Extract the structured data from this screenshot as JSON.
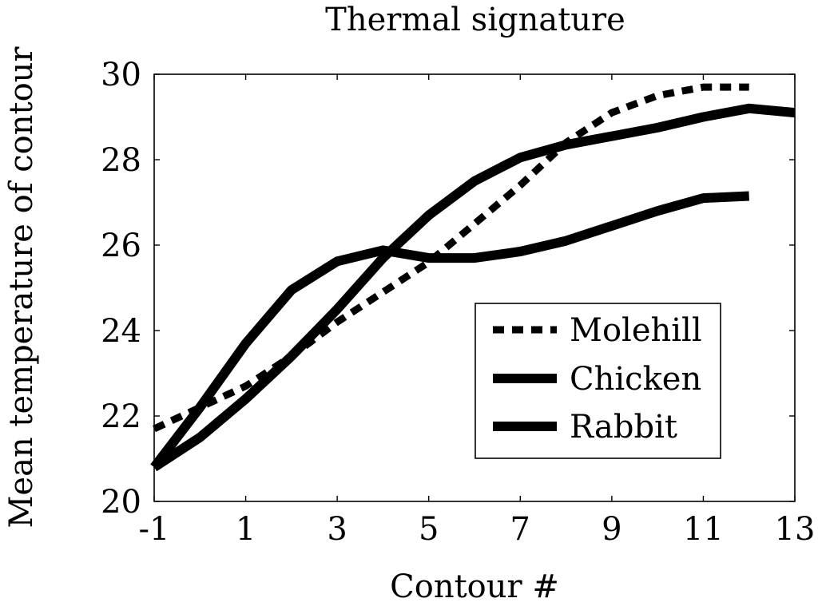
{
  "chart_data": {
    "type": "line",
    "title": "Thermal signature",
    "xlabel": "Contour #",
    "ylabel": "Mean temperature of contour",
    "xlim": [
      -1,
      13
    ],
    "ylim": [
      20,
      30
    ],
    "xticks": [
      -1,
      1,
      3,
      5,
      7,
      9,
      11,
      13
    ],
    "yticks": [
      20,
      22,
      24,
      26,
      28,
      30
    ],
    "grid": false,
    "legend_position": "bottom-right",
    "series": [
      {
        "name": "Molehill",
        "style": "dashed",
        "color": "#000000",
        "x": [
          -1,
          0,
          1,
          2,
          3,
          4,
          5,
          6,
          7,
          8,
          9,
          10,
          11,
          12
        ],
        "y": [
          21.7,
          22.2,
          22.7,
          23.4,
          24.2,
          24.9,
          25.6,
          26.5,
          27.4,
          28.4,
          29.1,
          29.5,
          29.7,
          29.7
        ]
      },
      {
        "name": "Chicken",
        "style": "solid",
        "color": "#000000",
        "x": [
          -1,
          0,
          1,
          2,
          3,
          4,
          5,
          6,
          7,
          8,
          9,
          10,
          11,
          12,
          13
        ],
        "y": [
          20.8,
          21.5,
          22.4,
          23.4,
          24.5,
          25.7,
          26.7,
          27.5,
          28.05,
          28.35,
          28.55,
          28.75,
          29.0,
          29.2,
          29.1
        ]
      },
      {
        "name": "Rabbit",
        "style": "solid",
        "color": "#000000",
        "x": [
          -1,
          0,
          1,
          2,
          3,
          4,
          5,
          6,
          7,
          8,
          9,
          10,
          11,
          12
        ],
        "y": [
          20.8,
          22.2,
          23.7,
          24.95,
          25.62,
          25.88,
          25.7,
          25.7,
          25.85,
          26.1,
          26.45,
          26.8,
          27.1,
          27.15
        ]
      }
    ]
  }
}
